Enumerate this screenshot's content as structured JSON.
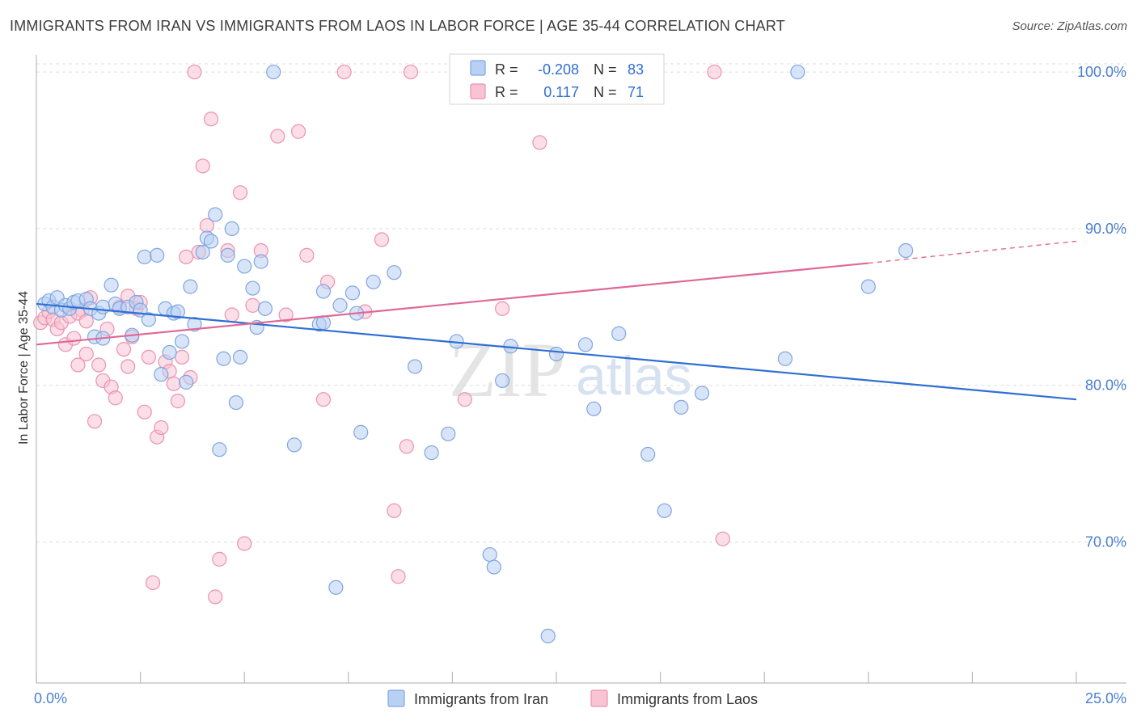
{
  "title": "IMMIGRANTS FROM IRAN VS IMMIGRANTS FROM LAOS IN LABOR FORCE | AGE 35-44 CORRELATION CHART",
  "source": "Source: ZipAtlas.com",
  "watermark": {
    "zip": "ZIP",
    "atlas": "atlas"
  },
  "legend_box": {
    "rows": [
      {
        "r_label": "R = ",
        "r_value": "-0.208",
        "n_label": "N = ",
        "n_value": "83"
      },
      {
        "r_label": "R = ",
        "r_value": "0.117",
        "n_label": "N = ",
        "n_value": "71"
      }
    ]
  },
  "colors": {
    "iran_fill": "#b8d0f4",
    "iran_stroke": "#7fa6e0",
    "iran_line": "#2f6fd4",
    "laos_fill": "#f8c3d3",
    "laos_stroke": "#eb92b0",
    "laos_line": "#e06896",
    "grid": "#dddddd",
    "tick_text": "#4a7fd0"
  },
  "chart_data": {
    "type": "scatter",
    "title": "IMMIGRANTS FROM IRAN VS IMMIGRANTS FROM LAOS IN LABOR FORCE | AGE 35-44 CORRELATION CHART",
    "xlabel": "",
    "ylabel": "In Labor Force | Age 35-44",
    "xlim": [
      0,
      25
    ],
    "ylim": [
      61,
      101.5
    ],
    "x_tick_labels": [
      "0.0%",
      "25.0%"
    ],
    "y_ticks": [
      70,
      80,
      90,
      100
    ],
    "y_tick_labels": [
      "70.0%",
      "80.0%",
      "90.0%",
      "100.0%"
    ],
    "legend_position": "bottom-center",
    "series": [
      {
        "name": "Immigrants from Iran",
        "r": -0.208,
        "n": 83,
        "trend": {
          "x0": 0,
          "y0": 85.2,
          "x1": 25,
          "y1": 79.1
        },
        "points": [
          [
            0.2,
            85.2
          ],
          [
            0.3,
            85.4
          ],
          [
            0.4,
            85.0
          ],
          [
            0.5,
            85.6
          ],
          [
            0.6,
            84.8
          ],
          [
            0.7,
            85.1
          ],
          [
            0.8,
            84.9
          ],
          [
            0.9,
            85.3
          ],
          [
            1.0,
            85.4
          ],
          [
            1.2,
            85.5
          ],
          [
            1.3,
            84.9
          ],
          [
            1.4,
            83.1
          ],
          [
            1.5,
            84.6
          ],
          [
            1.6,
            85.0
          ],
          [
            1.8,
            86.4
          ],
          [
            1.9,
            85.2
          ],
          [
            2.0,
            84.9
          ],
          [
            2.2,
            85.0
          ],
          [
            2.3,
            83.2
          ],
          [
            2.4,
            85.3
          ],
          [
            2.5,
            84.8
          ],
          [
            2.6,
            88.2
          ],
          [
            2.7,
            84.2
          ],
          [
            2.9,
            88.3
          ],
          [
            3.0,
            80.7
          ],
          [
            3.1,
            84.9
          ],
          [
            3.2,
            82.1
          ],
          [
            3.3,
            84.6
          ],
          [
            3.5,
            82.8
          ],
          [
            3.6,
            80.2
          ],
          [
            3.7,
            86.3
          ],
          [
            3.8,
            83.9
          ],
          [
            4.0,
            88.5
          ],
          [
            4.1,
            89.4
          ],
          [
            4.2,
            89.2
          ],
          [
            4.3,
            90.9
          ],
          [
            4.4,
            75.9
          ],
          [
            4.5,
            81.7
          ],
          [
            4.6,
            88.3
          ],
          [
            4.7,
            90.0
          ],
          [
            4.8,
            78.9
          ],
          [
            4.9,
            81.8
          ],
          [
            5.0,
            87.6
          ],
          [
            5.2,
            86.2
          ],
          [
            5.3,
            83.7
          ],
          [
            5.4,
            87.9
          ],
          [
            5.5,
            84.9
          ],
          [
            5.7,
            100.0
          ],
          [
            6.2,
            76.2
          ],
          [
            6.8,
            83.9
          ],
          [
            6.9,
            86.0
          ],
          [
            7.2,
            67.1
          ],
          [
            7.3,
            85.1
          ],
          [
            7.6,
            85.9
          ],
          [
            7.7,
            84.6
          ],
          [
            7.8,
            77.0
          ],
          [
            8.1,
            86.6
          ],
          [
            8.6,
            87.2
          ],
          [
            9.1,
            81.2
          ],
          [
            9.5,
            75.7
          ],
          [
            9.9,
            76.9
          ],
          [
            10.1,
            82.8
          ],
          [
            10.9,
            69.2
          ],
          [
            11.0,
            68.4
          ],
          [
            11.2,
            80.3
          ],
          [
            11.4,
            82.5
          ],
          [
            11.5,
            100.0
          ],
          [
            12.3,
            64.0
          ],
          [
            12.5,
            82.0
          ],
          [
            13.2,
            82.6
          ],
          [
            13.4,
            78.5
          ],
          [
            14.0,
            83.3
          ],
          [
            14.7,
            75.6
          ],
          [
            15.1,
            72.0
          ],
          [
            15.5,
            78.6
          ],
          [
            16.0,
            79.5
          ],
          [
            18.0,
            81.7
          ],
          [
            18.3,
            100.0
          ],
          [
            20.0,
            86.3
          ],
          [
            20.9,
            88.6
          ],
          [
            1.6,
            83.0
          ],
          [
            3.4,
            84.7
          ],
          [
            6.9,
            84.0
          ]
        ]
      },
      {
        "name": "Immigrants from Laos",
        "r": 0.117,
        "n": 71,
        "trend": {
          "x0": 0,
          "y0": 82.6,
          "x1": 20.0,
          "y1": 87.8,
          "dashed_to_x": 25,
          "dashed_to_y": 89.2
        },
        "points": [
          [
            0.1,
            84.0
          ],
          [
            0.2,
            84.3
          ],
          [
            0.3,
            84.7
          ],
          [
            0.4,
            84.2
          ],
          [
            0.5,
            83.6
          ],
          [
            0.6,
            84.0
          ],
          [
            0.7,
            82.6
          ],
          [
            0.8,
            84.4
          ],
          [
            0.9,
            83.0
          ],
          [
            1.0,
            81.3
          ],
          [
            1.1,
            84.8
          ],
          [
            1.2,
            82.0
          ],
          [
            1.3,
            85.6
          ],
          [
            1.4,
            77.7
          ],
          [
            1.5,
            81.3
          ],
          [
            1.6,
            80.3
          ],
          [
            1.7,
            83.6
          ],
          [
            1.8,
            79.9
          ],
          [
            1.9,
            79.2
          ],
          [
            2.0,
            85.0
          ],
          [
            2.1,
            82.3
          ],
          [
            2.2,
            81.2
          ],
          [
            2.3,
            83.1
          ],
          [
            2.4,
            84.9
          ],
          [
            2.5,
            85.3
          ],
          [
            2.6,
            78.3
          ],
          [
            2.7,
            81.8
          ],
          [
            2.8,
            67.4
          ],
          [
            2.9,
            76.7
          ],
          [
            3.0,
            77.3
          ],
          [
            3.1,
            81.5
          ],
          [
            3.2,
            80.9
          ],
          [
            3.3,
            80.1
          ],
          [
            3.4,
            79.0
          ],
          [
            3.5,
            81.8
          ],
          [
            3.6,
            88.2
          ],
          [
            3.7,
            80.5
          ],
          [
            3.8,
            100.0
          ],
          [
            3.9,
            88.5
          ],
          [
            4.0,
            94.0
          ],
          [
            4.1,
            90.2
          ],
          [
            4.2,
            97.0
          ],
          [
            4.3,
            66.5
          ],
          [
            4.4,
            68.9
          ],
          [
            4.7,
            84.5
          ],
          [
            4.9,
            92.3
          ],
          [
            5.0,
            69.9
          ],
          [
            5.2,
            85.1
          ],
          [
            5.4,
            88.6
          ],
          [
            5.8,
            95.9
          ],
          [
            6.0,
            84.5
          ],
          [
            6.3,
            96.2
          ],
          [
            6.5,
            88.3
          ],
          [
            6.9,
            79.1
          ],
          [
            7.0,
            86.6
          ],
          [
            7.4,
            100.0
          ],
          [
            7.9,
            84.7
          ],
          [
            8.3,
            89.3
          ],
          [
            8.6,
            72.0
          ],
          [
            8.7,
            67.8
          ],
          [
            8.9,
            76.1
          ],
          [
            9.0,
            100.0
          ],
          [
            10.3,
            79.1
          ],
          [
            11.2,
            84.9
          ],
          [
            12.1,
            95.5
          ],
          [
            16.3,
            100.0
          ],
          [
            16.5,
            70.2
          ],
          [
            4.6,
            88.6
          ],
          [
            2.2,
            85.7
          ],
          [
            1.0,
            84.6
          ],
          [
            1.2,
            84.1
          ]
        ]
      }
    ]
  }
}
